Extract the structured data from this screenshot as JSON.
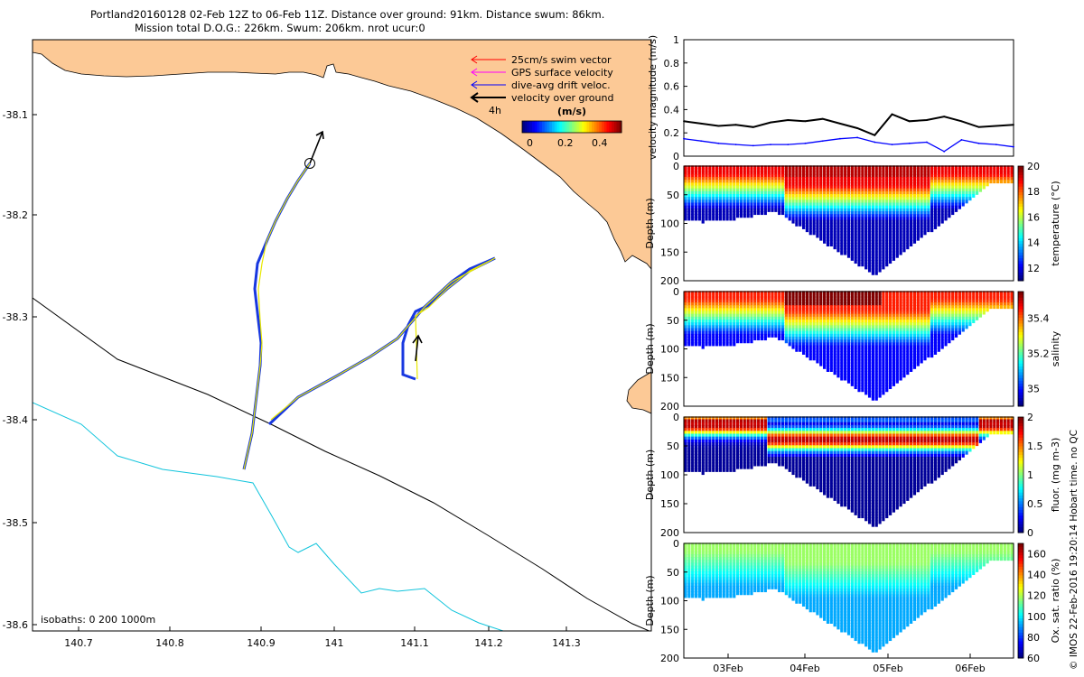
{
  "title_line1": "Portland20160128 02-Feb 12Z to 06-Feb 11Z. Distance over ground: 91km. Distance swum: 86km.",
  "title_line2": "Mission total D.O.G.: 226km. Swum: 206km. nrot ucur:0",
  "footer_text": "© IMOS 22-Feb-2016 19:20:14 Hobart time. no QC",
  "map": {
    "x_ticks": [
      "140.7",
      "140.8",
      "140.9",
      "141",
      "141.1",
      "141.2",
      "141.3"
    ],
    "y_ticks": [
      "-38.1",
      "-38.2",
      "-38.3",
      "-38.4",
      "-38.5",
      "-38.6"
    ],
    "legend": [
      "25cm/s swim vector",
      "GPS surface velocity",
      "dive-avg drift veloc.",
      "velocity over ground"
    ],
    "legend_colors": [
      "#ff0000",
      "#ff00ff",
      "#0000ff",
      "#000000"
    ],
    "legend_time": "4h",
    "colorbar_label": "(m/s)",
    "colorbar_ticks": [
      "0",
      "0.2",
      "0.4"
    ],
    "isobath_label": "isobaths: 0   200  1000m",
    "land_color": "#fcc996",
    "isobath_200_color": "#000000",
    "isobath_1000_color": "#00c8e0"
  },
  "chart_data": [
    {
      "type": "line",
      "title": "",
      "ylabel": "velocity magnitude (m/s)",
      "ylim": [
        0,
        1
      ],
      "y_ticks": [
        "0",
        "0.2",
        "0.4",
        "0.6",
        "0.8",
        "1"
      ],
      "x": [
        0.0,
        0.2,
        0.4,
        0.6,
        0.8,
        1.0,
        1.2,
        1.4,
        1.6,
        1.8,
        2.0,
        2.2,
        2.4,
        2.6,
        2.8,
        3.0,
        3.2,
        3.4,
        3.6,
        3.8
      ],
      "series": [
        {
          "name": "velocity over ground",
          "color": "#000000",
          "values": [
            0.3,
            0.28,
            0.26,
            0.27,
            0.25,
            0.29,
            0.31,
            0.3,
            0.32,
            0.28,
            0.24,
            0.18,
            0.36,
            0.3,
            0.31,
            0.34,
            0.3,
            0.25,
            0.26,
            0.27
          ]
        },
        {
          "name": "dive-avg drift veloc.",
          "color": "#0000ff",
          "values": [
            0.15,
            0.13,
            0.11,
            0.1,
            0.09,
            0.1,
            0.1,
            0.11,
            0.13,
            0.15,
            0.16,
            0.12,
            0.1,
            0.11,
            0.12,
            0.04,
            0.14,
            0.11,
            0.1,
            0.08
          ]
        }
      ]
    },
    {
      "type": "heatmap",
      "ylabel": "Depth (m)",
      "clabel": "temperature (°C)",
      "y_ticks": [
        "0",
        "50",
        "100",
        "150",
        "200"
      ],
      "c_ticks": [
        "12",
        "14",
        "16",
        "18",
        "20"
      ],
      "clim": [
        11,
        20
      ],
      "x_ticks": [
        "03Feb",
        "04Feb",
        "05Feb",
        "06Feb"
      ],
      "surface_value": 19.0,
      "mid_value": 14.0,
      "deep_value": 11.5
    },
    {
      "type": "heatmap",
      "ylabel": "Depth (m)",
      "clabel": "salinity",
      "y_ticks": [
        "0",
        "50",
        "100",
        "150",
        "200"
      ],
      "c_ticks": [
        "35",
        "35.2",
        "35.4"
      ],
      "clim": [
        34.9,
        35.55
      ],
      "x_ticks": [
        "03Feb",
        "04Feb",
        "05Feb",
        "06Feb"
      ],
      "surface_value": 35.45,
      "mid_value": 35.15,
      "deep_value": 34.98
    },
    {
      "type": "heatmap",
      "ylabel": "Depth (m)",
      "clabel": "fluor. (mg m-3)",
      "y_ticks": [
        "0",
        "50",
        "100",
        "150",
        "200"
      ],
      "c_ticks": [
        "0",
        "0.5",
        "1",
        "1.5",
        "2"
      ],
      "clim": [
        0,
        2
      ],
      "x_ticks": [
        "03Feb",
        "04Feb",
        "05Feb",
        "06Feb"
      ],
      "surface_value": 1.4,
      "mid_value": 1.9,
      "deep_value": 0.05
    },
    {
      "type": "heatmap",
      "ylabel": "Depth (m)",
      "clabel": "Ox. sat. ratio (%)",
      "y_ticks": [
        "0",
        "50",
        "100",
        "150",
        "200"
      ],
      "c_ticks": [
        "60",
        "80",
        "100",
        "120",
        "140",
        "160"
      ],
      "clim": [
        60,
        170
      ],
      "x_ticks": [
        "03Feb",
        "04Feb",
        "05Feb",
        "06Feb"
      ],
      "surface_value": 118,
      "mid_value": 105,
      "deep_value": 92
    }
  ]
}
